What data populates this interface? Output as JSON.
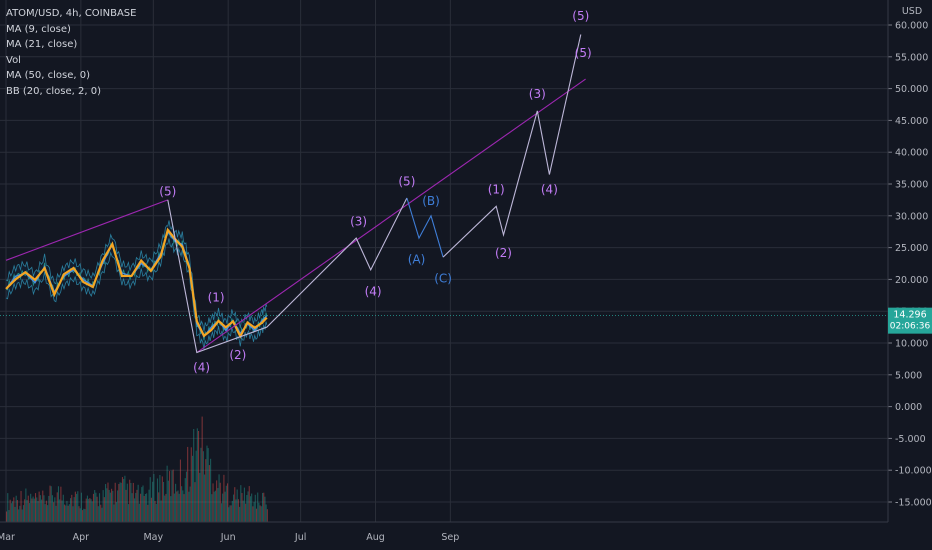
{
  "header": {
    "title": "ATOM/USD, 4h, COINBASE",
    "indicators": [
      "MA (9, close)",
      "MA (21, close)",
      "Vol",
      "MA (50, close, 0)",
      "BB (20, close, 2, 0)"
    ]
  },
  "price_tag": {
    "value": "14.296",
    "countdown": "02:06:36",
    "color": "#26a69a"
  },
  "colors": {
    "background": "#131722",
    "grid": "#2a2e39",
    "wave_main": "#c27cf6",
    "wave_projection": "#bdb7d8",
    "wave_correction": "#3f7ed8",
    "trendline": "#9c27b0",
    "ma_fast": "#f5a623",
    "ma_slow": "#4a90e2"
  },
  "chart_data": {
    "type": "line",
    "y_unit": "USD",
    "ylim": [
      -18,
      63
    ],
    "y_ticks": [
      "60.000",
      "55.000",
      "50.000",
      "45.000",
      "40.000",
      "35.000",
      "30.000",
      "25.000",
      "20.000",
      "15.000",
      "10.000",
      "5.000",
      "0.000",
      "-5.000",
      "-10.000",
      "-15.000"
    ],
    "y_tick_values": [
      60,
      55,
      50,
      45,
      40,
      35,
      30,
      25,
      20,
      15,
      10,
      5,
      0,
      -5,
      -10,
      -15
    ],
    "x_ticks": [
      "Mar",
      "Apr",
      "May",
      "Jun",
      "Jul",
      "Aug",
      "Sep"
    ],
    "x_tick_dates": [
      "2021-03-01",
      "2021-04-01",
      "2021-05-01",
      "2021-06-01",
      "2021-07-01",
      "2021-08-01",
      "2021-09-01"
    ],
    "xlim": [
      "2021-03-01",
      "2021-10-26"
    ],
    "price": {
      "dates": [
        "2021-03-01",
        "2021-03-05",
        "2021-03-09",
        "2021-03-13",
        "2021-03-17",
        "2021-03-21",
        "2021-03-25",
        "2021-03-29",
        "2021-04-02",
        "2021-04-06",
        "2021-04-10",
        "2021-04-14",
        "2021-04-18",
        "2021-04-22",
        "2021-04-26",
        "2021-04-30",
        "2021-05-04",
        "2021-05-07",
        "2021-05-10",
        "2021-05-13",
        "2021-05-16",
        "2021-05-19",
        "2021-05-22",
        "2021-05-25",
        "2021-05-28",
        "2021-05-31",
        "2021-06-03",
        "2021-06-06",
        "2021-06-09",
        "2021-06-12",
        "2021-06-15",
        "2021-06-17"
      ],
      "values": [
        18.5,
        20.5,
        21.0,
        19.5,
        22.0,
        18.0,
        20.5,
        21.5,
        20.0,
        19.0,
        22.5,
        25.5,
        21.0,
        20.5,
        22.5,
        21.5,
        24.0,
        27.5,
        26.0,
        25.5,
        22.0,
        13.0,
        11.0,
        12.5,
        13.5,
        12.0,
        13.5,
        11.5,
        13.0,
        12.0,
        13.5,
        14.3
      ]
    },
    "volume": {
      "dates": [
        "2021-03-01",
        "2021-03-08",
        "2021-03-15",
        "2021-03-22",
        "2021-03-29",
        "2021-04-05",
        "2021-04-12",
        "2021-04-19",
        "2021-04-26",
        "2021-05-03",
        "2021-05-10",
        "2021-05-14",
        "2021-05-17",
        "2021-05-20",
        "2021-05-24",
        "2021-05-28",
        "2021-06-01",
        "2021-06-05",
        "2021-06-09",
        "2021-06-13",
        "2021-06-17"
      ],
      "values": [
        0.25,
        0.3,
        0.25,
        0.35,
        0.3,
        0.25,
        0.35,
        0.4,
        0.3,
        0.45,
        0.5,
        0.6,
        0.8,
        1.0,
        0.7,
        0.45,
        0.35,
        0.3,
        0.35,
        0.25,
        0.3
      ]
    },
    "wave_main": {
      "points": [
        [
          "2021-05-07",
          32.5
        ],
        [
          "2021-05-19",
          8.5
        ],
        [
          "2021-06-17",
          12.5
        ],
        [
          "2021-07-24",
          26.5
        ],
        [
          "2021-07-30",
          21.5
        ],
        [
          "2021-08-14",
          32.8
        ]
      ],
      "labels": [
        [
          "2021-05-07",
          33.2,
          "(5)"
        ],
        [
          "2021-05-21",
          5.5,
          "(4)"
        ],
        [
          "2021-05-27",
          16.5,
          "(1)"
        ],
        [
          "2021-06-05",
          7.5,
          "(2)"
        ],
        [
          "2021-07-25",
          28.5,
          "(3)"
        ],
        [
          "2021-07-31",
          17.5,
          "(4)"
        ],
        [
          "2021-08-14",
          34.8,
          "(5)"
        ]
      ]
    },
    "wave_correction": {
      "points": [
        [
          "2021-08-14",
          32.8
        ],
        [
          "2021-08-19",
          26.5
        ],
        [
          "2021-08-24",
          30.0
        ],
        [
          "2021-08-29",
          23.5
        ]
      ],
      "labels": [
        [
          "2021-08-18",
          22.5,
          "(A)"
        ],
        [
          "2021-08-24",
          31.7,
          "(B)"
        ],
        [
          "2021-08-29",
          19.5,
          "(C)"
        ]
      ]
    },
    "wave_projection": {
      "points": [
        [
          "2021-08-29",
          23.5
        ],
        [
          "2021-09-20",
          31.5
        ],
        [
          "2021-09-23",
          27.0
        ],
        [
          "2021-10-07",
          46.5
        ],
        [
          "2021-10-12",
          36.5
        ],
        [
          "2021-10-25",
          58.5
        ]
      ],
      "labels": [
        [
          "2021-09-20",
          33.5,
          "(1)"
        ],
        [
          "2021-09-23",
          23.5,
          "(2)"
        ],
        [
          "2021-10-07",
          48.5,
          "(3)"
        ],
        [
          "2021-10-12",
          33.5,
          "(4)"
        ],
        [
          "2021-10-25",
          60.8,
          "(5)"
        ],
        [
          "2021-10-26",
          55.0,
          "(5)"
        ]
      ]
    },
    "trendlines": [
      [
        [
          "2021-03-01",
          23.0
        ],
        [
          "2021-05-07",
          32.5
        ]
      ],
      [
        [
          "2021-05-19",
          8.5
        ],
        [
          "2021-10-27",
          51.5
        ]
      ]
    ]
  }
}
